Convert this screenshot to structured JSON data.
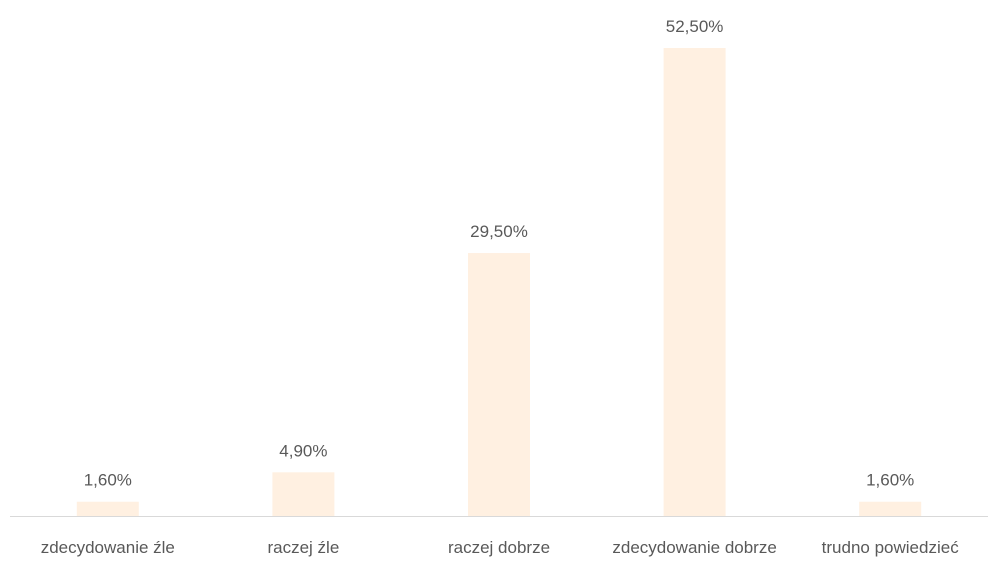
{
  "chart_data": {
    "type": "bar",
    "categories": [
      "zdecydowanie źle",
      "raczej źle",
      "raczej dobrze",
      "zdecydowanie dobrze",
      "trudno powiedzieć"
    ],
    "values": [
      1.6,
      4.9,
      29.5,
      52.5,
      1.6
    ],
    "value_labels": [
      "1,60%",
      "4,90%",
      "29,50%",
      "52,50%",
      "1,60%"
    ],
    "color": "#fff0e1"
  }
}
